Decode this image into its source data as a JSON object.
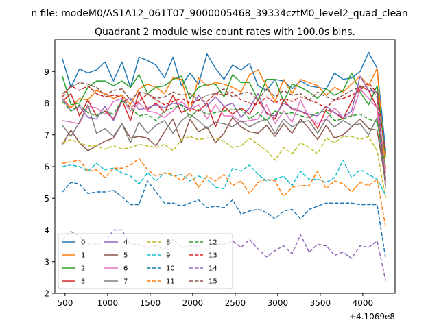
{
  "chart_data": {
    "type": "line",
    "suptitle": "n file: modeM0/AS1A12_061T07_9000005468_39334cztM0_level2_quad_clean",
    "title": "Quadrant 2 module wise count rates with 100.0s bins.",
    "xlabel": "",
    "ylabel": "",
    "x_offset_label": "+4.1069e8",
    "xlim": [
      380,
      4380
    ],
    "ylim": [
      2,
      10
    ],
    "xticks": [
      500,
      1000,
      1500,
      2000,
      2500,
      3000,
      3500,
      4000
    ],
    "xtick_labels": [
      "500",
      "1000",
      "1500",
      "2000",
      "2500",
      "3000",
      "3500",
      "4000"
    ],
    "yticks": [
      2,
      3,
      4,
      5,
      6,
      7,
      8,
      9
    ],
    "ytick_labels": [
      "2",
      "3",
      "4",
      "5",
      "6",
      "7",
      "8",
      "9"
    ],
    "grid": false,
    "legend_placement": "lower-left",
    "x": [
      469,
      569,
      669,
      769,
      869,
      969,
      1069,
      1169,
      1269,
      1369,
      1469,
      1569,
      1669,
      1769,
      1869,
      1969,
      2069,
      2169,
      2269,
      2369,
      2469,
      2569,
      2669,
      2769,
      2869,
      2969,
      3069,
      3169,
      3269,
      3369,
      3469,
      3569,
      3669,
      3769,
      3869,
      3969,
      4069,
      4169,
      4269
    ],
    "series": [
      {
        "name": "0",
        "color": "#1f77b4",
        "style": "solid",
        "values": [
          9.4,
          8.5,
          9.08,
          8.95,
          9.05,
          9.3,
          8.7,
          9.3,
          8.5,
          9.45,
          9.35,
          9.2,
          8.8,
          9.45,
          8.55,
          8.95,
          8.6,
          9.55,
          9.1,
          8.75,
          9.2,
          9.05,
          9.25,
          8.55,
          8.4,
          8.75,
          8.7,
          8.45,
          8.7,
          8.55,
          8.5,
          8.45,
          8.95,
          8.75,
          8.8,
          9.0,
          9.6,
          9.1,
          6.5
        ]
      },
      {
        "name": "1",
        "color": "#ff7f0e",
        "style": "solid",
        "values": [
          8.15,
          7.85,
          8.15,
          8.1,
          8.4,
          8.3,
          8.15,
          8.25,
          7.95,
          8.45,
          8.6,
          8.5,
          8.3,
          8.8,
          8.75,
          7.75,
          8.8,
          8.55,
          8.65,
          8.6,
          8.5,
          8.35,
          8.9,
          9.05,
          8.55,
          8.05,
          8.75,
          8.3,
          8.75,
          8.65,
          8.55,
          8.25,
          8.5,
          8.35,
          8.6,
          8.85,
          8.55,
          9.1,
          5.9
        ]
      },
      {
        "name": "2",
        "color": "#2ca02c",
        "style": "solid",
        "values": [
          8.85,
          7.95,
          8.0,
          8.5,
          8.7,
          8.7,
          8.55,
          8.7,
          8.5,
          8.9,
          8.3,
          8.5,
          8.55,
          8.75,
          8.85,
          8.15,
          8.5,
          8.6,
          8.6,
          8.2,
          8.9,
          8.65,
          8.65,
          8.1,
          8.75,
          8.75,
          8.05,
          8.6,
          8.5,
          8.35,
          8.15,
          8.45,
          8.25,
          8.4,
          8.95,
          8.35,
          7.95,
          8.55,
          6.3
        ]
      },
      {
        "name": "3",
        "color": "#d62728",
        "style": "solid",
        "values": [
          8.05,
          8.3,
          7.6,
          8.1,
          7.6,
          7.75,
          7.5,
          8.1,
          7.45,
          8.35,
          7.8,
          8.0,
          7.7,
          8.25,
          7.7,
          7.85,
          7.75,
          8.0,
          7.25,
          7.9,
          7.65,
          7.85,
          7.65,
          8.1,
          7.7,
          7.5,
          8.1,
          7.8,
          7.75,
          7.6,
          7.2,
          7.8,
          7.7,
          7.5,
          8.05,
          8.55,
          8.4,
          7.85,
          5.5
        ]
      },
      {
        "name": "4",
        "color": "#9467bd",
        "style": "solid",
        "values": [
          8.15,
          7.75,
          7.9,
          7.55,
          7.5,
          7.9,
          7.45,
          8.05,
          8.15,
          7.8,
          7.85,
          7.95,
          7.85,
          8.0,
          7.95,
          7.8,
          8.25,
          7.9,
          8.2,
          7.9,
          8.0,
          7.55,
          7.85,
          8.3,
          7.65,
          7.6,
          8.0,
          7.85,
          7.75,
          7.65,
          7.6,
          7.9,
          7.7,
          7.55,
          7.75,
          8.85,
          8.4,
          8.35,
          5.6
        ]
      },
      {
        "name": "5",
        "color": "#8c564b",
        "style": "solid",
        "values": [
          6.7,
          7.15,
          6.75,
          6.5,
          6.65,
          6.8,
          6.9,
          7.35,
          6.9,
          6.95,
          6.9,
          6.65,
          7.1,
          7.5,
          6.75,
          7.5,
          7.1,
          7.25,
          6.75,
          7.05,
          7.55,
          7.25,
          7.1,
          7.05,
          7.3,
          6.95,
          7.35,
          7.05,
          7.5,
          7.2,
          6.85,
          7.3,
          6.9,
          7.0,
          7.25,
          7.5,
          7.2,
          7.15,
          5.5
        ]
      },
      {
        "name": "6",
        "color": "#e377c2",
        "style": "solid",
        "values": [
          7.45,
          7.4,
          7.35,
          7.9,
          7.85,
          7.65,
          8.05,
          8.15,
          7.75,
          8.0,
          7.75,
          7.7,
          7.55,
          7.75,
          8.05,
          7.8,
          7.95,
          7.5,
          7.95,
          7.6,
          7.6,
          7.4,
          7.45,
          7.5,
          7.95,
          7.35,
          7.75,
          7.4,
          8.1,
          7.55,
          7.35,
          7.5,
          7.85,
          7.55,
          7.6,
          8.45,
          8.15,
          7.85,
          5.8
        ]
      },
      {
        "name": "7",
        "color": "#7f7f7f",
        "style": "solid",
        "values": [
          7.3,
          6.95,
          7.4,
          7.95,
          7.05,
          7.2,
          6.95,
          7.35,
          6.75,
          7.4,
          7.05,
          7.3,
          7.45,
          7.05,
          7.45,
          7.65,
          7.45,
          7.2,
          7.4,
          7.35,
          7.25,
          7.45,
          7.25,
          7.4,
          7.5,
          7.05,
          7.5,
          7.25,
          7.4,
          7.45,
          7.05,
          7.5,
          7.25,
          7.45,
          7.3,
          7.35,
          7.0,
          7.55,
          5.4
        ]
      },
      {
        "name": "8",
        "color": "#bcbd22",
        "style": "dashed",
        "values": [
          6.75,
          6.85,
          6.75,
          6.65,
          6.65,
          6.55,
          6.65,
          6.55,
          6.6,
          6.7,
          6.65,
          6.6,
          6.7,
          6.5,
          6.85,
          6.95,
          6.85,
          6.9,
          6.9,
          6.8,
          6.6,
          6.65,
          6.9,
          6.7,
          6.5,
          6.2,
          6.6,
          6.4,
          6.75,
          6.6,
          6.4,
          6.9,
          6.75,
          6.95,
          6.95,
          6.85,
          6.95,
          6.5,
          5.0
        ]
      },
      {
        "name": "9",
        "color": "#17becf",
        "style": "dashed",
        "values": [
          6.0,
          6.05,
          6.0,
          5.85,
          6.1,
          5.9,
          5.95,
          5.8,
          5.7,
          5.45,
          5.8,
          5.55,
          5.8,
          5.7,
          5.75,
          5.55,
          5.7,
          5.6,
          5.35,
          5.3,
          5.95,
          5.85,
          6.05,
          5.75,
          5.55,
          5.6,
          5.7,
          5.4,
          5.85,
          5.6,
          5.6,
          5.5,
          5.65,
          6.2,
          5.65,
          5.9,
          5.75,
          5.6,
          5.1
        ]
      },
      {
        "name": "10",
        "color": "#1f77b4",
        "style": "dashed",
        "values": [
          5.2,
          5.5,
          5.45,
          5.15,
          5.2,
          5.2,
          5.25,
          5.05,
          4.8,
          4.8,
          5.55,
          5.2,
          4.85,
          4.85,
          4.75,
          4.85,
          4.95,
          4.7,
          4.75,
          4.7,
          4.95,
          4.5,
          4.6,
          4.65,
          4.55,
          4.35,
          4.6,
          4.65,
          4.35,
          4.65,
          4.75,
          4.85,
          4.85,
          4.85,
          4.85,
          4.8,
          4.8,
          4.8,
          3.1
        ]
      },
      {
        "name": "11",
        "color": "#ff7f0e",
        "style": "dashed",
        "values": [
          6.1,
          6.15,
          6.2,
          5.85,
          5.9,
          5.65,
          5.95,
          5.95,
          6.05,
          6.25,
          5.9,
          5.7,
          5.8,
          5.75,
          5.55,
          5.8,
          5.35,
          5.7,
          5.55,
          5.75,
          5.4,
          5.55,
          5.15,
          5.5,
          5.6,
          5.55,
          5.05,
          5.35,
          5.4,
          5.4,
          5.85,
          5.3,
          5.55,
          5.45,
          5.2,
          5.5,
          5.4,
          5.6,
          4.1
        ]
      },
      {
        "name": "12",
        "color": "#2ca02c",
        "style": "dashed",
        "values": [
          8.05,
          7.75,
          7.95,
          7.7,
          7.6,
          7.75,
          7.65,
          8.1,
          7.85,
          7.6,
          7.65,
          7.45,
          7.75,
          7.85,
          7.95,
          7.55,
          7.8,
          7.65,
          7.7,
          7.75,
          7.8,
          7.8,
          7.5,
          7.7,
          7.45,
          7.75,
          7.65,
          7.7,
          7.6,
          7.55,
          7.7,
          7.75,
          7.45,
          7.5,
          7.6,
          7.65,
          7.5,
          7.4,
          6.0
        ]
      },
      {
        "name": "13",
        "color": "#d62728",
        "style": "dashed",
        "values": [
          8.2,
          8.55,
          8.4,
          8.55,
          8.3,
          8.2,
          8.25,
          8.2,
          7.85,
          8.05,
          8.3,
          8.1,
          7.95,
          8.05,
          8.15,
          8.0,
          8.1,
          8.05,
          8.3,
          8.25,
          8.35,
          8.1,
          8.0,
          7.95,
          8.2,
          8.0,
          8.15,
          8.05,
          8.2,
          8.1,
          8.0,
          7.85,
          8.1,
          8.15,
          8.25,
          8.4,
          8.65,
          8.3,
          6.4
        ]
      },
      {
        "name": "14",
        "color": "#9467bd",
        "style": "dashed",
        "values": [
          3.7,
          3.95,
          3.8,
          3.55,
          3.55,
          3.6,
          4.0,
          4.0,
          3.55,
          3.55,
          3.45,
          3.5,
          3.4,
          3.7,
          3.45,
          3.5,
          3.5,
          3.35,
          3.55,
          3.55,
          3.65,
          3.45,
          3.7,
          3.4,
          3.15,
          3.35,
          3.5,
          3.25,
          3.85,
          3.3,
          3.55,
          3.5,
          3.2,
          3.3,
          3.1,
          3.5,
          3.45,
          3.65,
          2.4
        ]
      },
      {
        "name": "15",
        "color": "#8c564b",
        "style": "dashed",
        "values": [
          8.3,
          8.5,
          8.65,
          8.6,
          8.5,
          8.25,
          8.4,
          8.45,
          8.1,
          8.35,
          8.3,
          8.15,
          8.2,
          8.35,
          8.25,
          8.3,
          8.1,
          8.25,
          8.3,
          8.45,
          8.2,
          8.3,
          8.35,
          8.1,
          8.45,
          8.2,
          8.4,
          8.25,
          8.3,
          8.1,
          8.35,
          8.2,
          8.1,
          8.25,
          8.4,
          8.5,
          8.55,
          8.2,
          5.3
        ]
      }
    ]
  }
}
